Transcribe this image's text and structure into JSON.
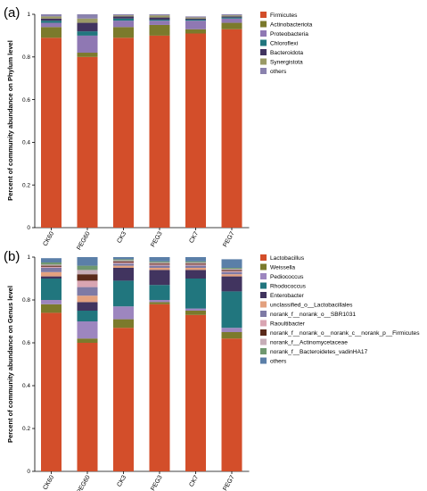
{
  "panels": [
    {
      "letter": "(a)",
      "ylabel": "Percent of community abundance on Phylum level",
      "yticks": [
        "0",
        "0.2",
        "0.4",
        "0.6",
        "0.8",
        "1"
      ]
    },
    {
      "letter": "(b)",
      "ylabel": "Percent of community abundance on Genus level",
      "yticks": [
        "0",
        "0.2",
        "0.4",
        "0.6",
        "0.8",
        "1"
      ]
    }
  ],
  "chart_data": [
    {
      "type": "bar",
      "stacked": true,
      "ylim": [
        0,
        1
      ],
      "legend_position": "right",
      "categories": [
        "CK60",
        "PEG60",
        "CK3",
        "PEG3",
        "CK7",
        "PEG7"
      ],
      "colors": [
        "#d34e2a",
        "#7b7a2c",
        "#8f78b3",
        "#21767e",
        "#41345f",
        "#9a9a66",
        "#8a82ae",
        "#a1aeb3"
      ],
      "series": [
        {
          "name": "Firmicutes",
          "values": [
            0.89,
            0.8,
            0.89,
            0.9,
            0.91,
            0.93
          ]
        },
        {
          "name": "Actinobacteriota",
          "values": [
            0.05,
            0.02,
            0.05,
            0.05,
            0.02,
            0.03
          ]
        },
        {
          "name": "Proteobacteria",
          "values": [
            0.02,
            0.08,
            0.03,
            0.02,
            0.04,
            0.02
          ]
        },
        {
          "name": "Chloroflexi",
          "values": [
            0.01,
            0.02,
            0.01,
            0.005,
            0.005,
            0.005
          ]
        },
        {
          "name": "Bacteroidota",
          "values": [
            0.01,
            0.04,
            0.01,
            0.01,
            0.005,
            0.005
          ]
        },
        {
          "name": "Synergistota",
          "values": [
            0.01,
            0.02,
            0.005,
            0.01,
            0.005,
            0.005
          ]
        },
        {
          "name": "others",
          "values": [
            0.01,
            0.02,
            0.005,
            0.005,
            0.005,
            0.005
          ]
        }
      ]
    },
    {
      "type": "bar",
      "stacked": true,
      "ylim": [
        0,
        1
      ],
      "legend_position": "right",
      "categories": [
        "CK60",
        "PEG60",
        "CK3",
        "PEG3",
        "CK7",
        "PEG7"
      ],
      "colors": [
        "#d34e2a",
        "#7b7a2c",
        "#9d86bf",
        "#21767e",
        "#41345f",
        "#e3a17f",
        "#7e7aa5",
        "#d9a5b2",
        "#5a2a1a",
        "#c7aeb8",
        "#6f9870",
        "#5b7fa8"
      ],
      "series": [
        {
          "name": "Lactobacillus",
          "values": [
            0.74,
            0.6,
            0.67,
            0.78,
            0.73,
            0.62
          ]
        },
        {
          "name": "Weissella",
          "values": [
            0.04,
            0.02,
            0.04,
            0.01,
            0.02,
            0.03
          ]
        },
        {
          "name": "Pediococcus",
          "values": [
            0.02,
            0.08,
            0.06,
            0.01,
            0.01,
            0.02
          ]
        },
        {
          "name": "Rhodococcus",
          "values": [
            0.1,
            0.05,
            0.12,
            0.07,
            0.14,
            0.17
          ]
        },
        {
          "name": "Enterobacter",
          "values": [
            0.01,
            0.04,
            0.06,
            0.07,
            0.04,
            0.07
          ]
        },
        {
          "name": "unclassified_o__Lactobacillales",
          "values": [
            0.02,
            0.03,
            0.01,
            0.01,
            0.01,
            0.01
          ]
        },
        {
          "name": "norank_f__norank_o__SBR1031",
          "values": [
            0.02,
            0.04,
            0.01,
            0.01,
            0.01,
            0.01
          ]
        },
        {
          "name": "Raoultibacter",
          "values": [
            0.005,
            0.03,
            0.005,
            0.005,
            0.005,
            0.005
          ]
        },
        {
          "name": "norank_f__norank_o__norank_c__norank_p__Firmicutes",
          "values": [
            0.005,
            0.03,
            0.005,
            0.005,
            0.005,
            0.005
          ]
        },
        {
          "name": "norank_f__Actinomycetaceae",
          "values": [
            0.005,
            0.02,
            0.005,
            0.005,
            0.005,
            0.005
          ]
        },
        {
          "name": "norank_f__Bacteroidetes_vadinHA17",
          "values": [
            0.01,
            0.02,
            0.005,
            0.005,
            0.005,
            0.005
          ]
        },
        {
          "name": "others",
          "values": [
            0.02,
            0.04,
            0.01,
            0.02,
            0.02,
            0.04
          ]
        }
      ]
    }
  ]
}
